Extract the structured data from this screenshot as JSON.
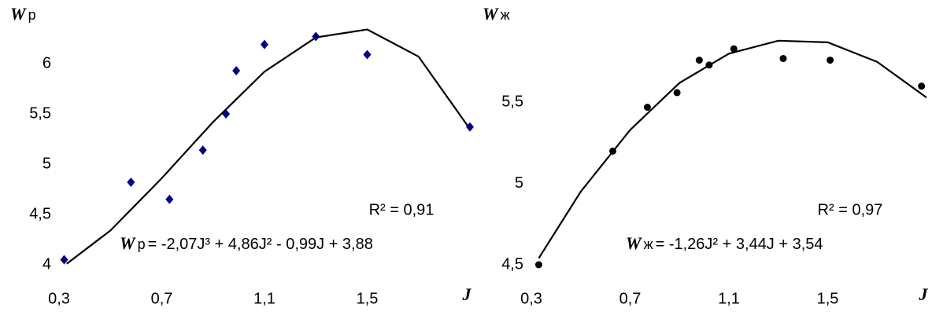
{
  "chart_data": [
    {
      "type": "scatter",
      "y_label": {
        "symbol": "W",
        "sub": "р"
      },
      "x_label": "J",
      "x": [
        0.32,
        0.58,
        0.73,
        0.86,
        0.95,
        0.99,
        1.1,
        1.3,
        1.5,
        1.9
      ],
      "values": [
        4.05,
        4.82,
        4.65,
        5.14,
        5.5,
        5.93,
        6.19,
        6.27,
        6.09,
        5.37
      ],
      "color": "#000080",
      "marker": "diamond",
      "trendline": {
        "color": "#000000",
        "x": [
          0.33,
          0.5,
          0.7,
          0.9,
          1.1,
          1.3,
          1.5,
          1.7,
          1.9
        ],
        "values": [
          4.01,
          4.34,
          4.86,
          5.42,
          5.92,
          6.26,
          6.34,
          6.07,
          5.35
        ]
      },
      "r_squared": "R² = 0,91",
      "equation": {
        "symbol": "W",
        "sub": "р",
        "text": "= -2,07J³ + 4,86J² - 0,99J + 3,88"
      },
      "xlim": [
        0.3,
        1.9
      ],
      "xticks": [
        {
          "value": 0.3,
          "label": "0,3"
        },
        {
          "value": 0.7,
          "label": "0,7"
        },
        {
          "value": 1.1,
          "label": "1,1"
        },
        {
          "value": 1.5,
          "label": "1,5"
        }
      ],
      "ylim": [
        4,
        6.5
      ],
      "yticks": [
        4,
        {
          "value": 4.5,
          "label": "4,5"
        },
        5,
        {
          "value": 5.5,
          "label": "5,5"
        },
        6
      ]
    },
    {
      "type": "scatter",
      "y_label": {
        "symbol": "W",
        "sub": "ж"
      },
      "x_label": "J",
      "x": [
        0.33,
        0.63,
        0.77,
        0.89,
        0.98,
        1.02,
        1.12,
        1.32,
        1.51,
        1.88
      ],
      "values": [
        4.5,
        5.2,
        5.47,
        5.56,
        5.76,
        5.73,
        5.83,
        5.77,
        5.76,
        5.6
      ],
      "color": "#000000",
      "marker": "circle",
      "trendline": {
        "color": "#000000",
        "x": [
          0.33,
          0.5,
          0.7,
          0.9,
          1.1,
          1.3,
          1.5,
          1.7,
          1.9
        ],
        "values": [
          4.54,
          4.95,
          5.33,
          5.62,
          5.8,
          5.88,
          5.87,
          5.75,
          5.53
        ]
      },
      "r_squared": "R² = 0,97",
      "equation": {
        "symbol": "W",
        "sub": "ж",
        "text": "= -1,26J² + 3,44J + 3,54"
      },
      "xlim": [
        0.3,
        1.9
      ],
      "xticks": [
        {
          "value": 0.3,
          "label": "0,3"
        },
        {
          "value": 0.7,
          "label": "0,7"
        },
        {
          "value": 1.1,
          "label": "1,1"
        },
        {
          "value": 1.5,
          "label": "1,5"
        }
      ],
      "ylim": [
        4.5,
        6
      ],
      "yticks": [
        {
          "value": 4.5,
          "label": "4,5"
        },
        5,
        {
          "value": 5.5,
          "label": "5,5"
        }
      ]
    }
  ]
}
